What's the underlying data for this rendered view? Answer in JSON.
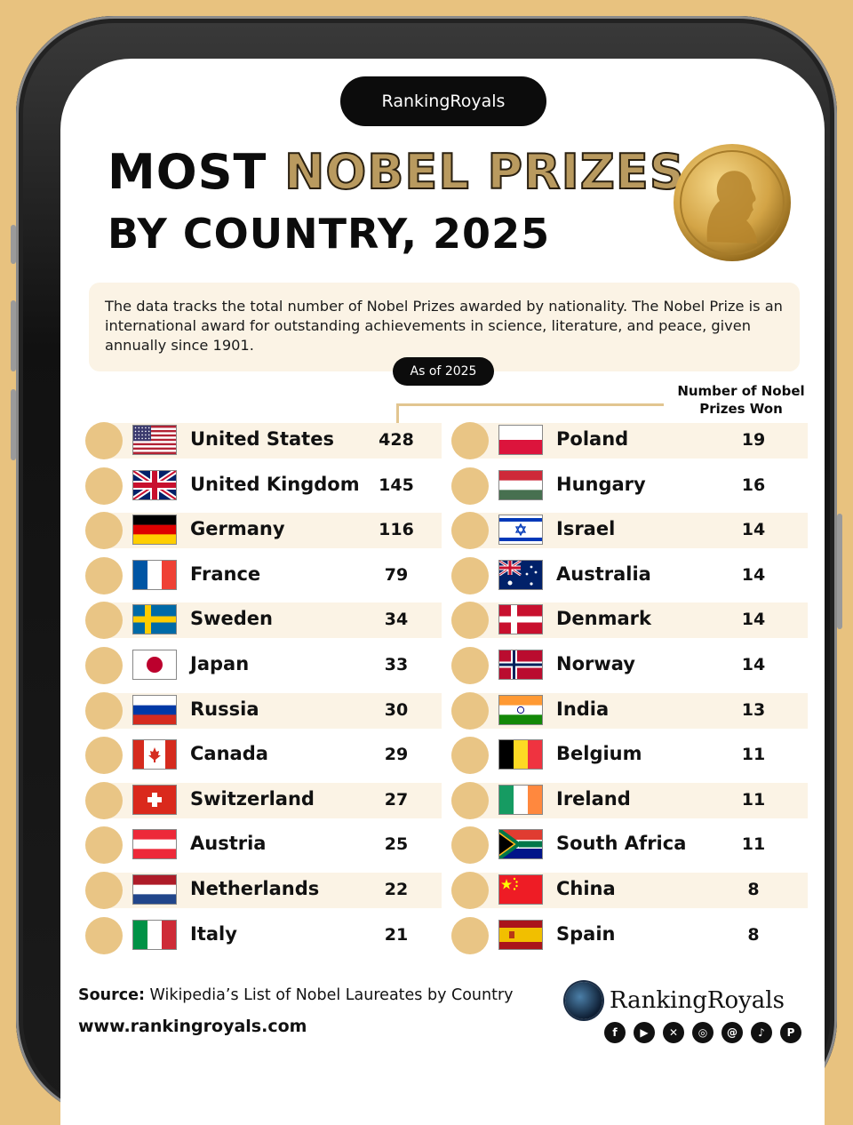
{
  "header": {
    "brand_pill": "RankingRoyals"
  },
  "title": {
    "line1_a": "MOST ",
    "line1_b": "NOBEL PRIZES",
    "line2": "BY COUNTRY, 2025"
  },
  "description": "The data tracks the total number of Nobel Prizes awarded by nationality. The Nobel Prize is an international award for outstanding achievements in science, literature, and peace, given annually since 1901.",
  "as_of": "As of 2025",
  "column_header": "Number of Nobel Prizes Won",
  "chart_data": {
    "type": "table",
    "title": "MOST NOBEL PRIZES BY COUNTRY, 2025",
    "column_header": "Number of Nobel Prizes Won",
    "rows": [
      {
        "country": "United States",
        "value": 428
      },
      {
        "country": "United Kingdom",
        "value": 145
      },
      {
        "country": "Germany",
        "value": 116
      },
      {
        "country": "France",
        "value": 79
      },
      {
        "country": "Sweden",
        "value": 34
      },
      {
        "country": "Japan",
        "value": 33
      },
      {
        "country": "Russia",
        "value": 30
      },
      {
        "country": "Canada",
        "value": 29
      },
      {
        "country": "Switzerland",
        "value": 27
      },
      {
        "country": "Austria",
        "value": 25
      },
      {
        "country": "Netherlands",
        "value": 22
      },
      {
        "country": "Italy",
        "value": 21
      },
      {
        "country": "Poland",
        "value": 19
      },
      {
        "country": "Hungary",
        "value": 16
      },
      {
        "country": "Israel",
        "value": 14
      },
      {
        "country": "Australia",
        "value": 14
      },
      {
        "country": "Denmark",
        "value": 14
      },
      {
        "country": "Norway",
        "value": 14
      },
      {
        "country": "India",
        "value": 13
      },
      {
        "country": "Belgium",
        "value": 11
      },
      {
        "country": "Ireland",
        "value": 11
      },
      {
        "country": "South Africa",
        "value": 11
      },
      {
        "country": "China",
        "value": 8
      },
      {
        "country": "Spain",
        "value": 8
      }
    ]
  },
  "colors": {
    "accent_gold": "#b99a5f",
    "circle": "#e9c585",
    "band": "#fbf3e5",
    "background": "#e8c27f"
  },
  "footer": {
    "source_label": "Source:",
    "source_text": " Wikipedia’s List of Nobel Laureates by Country",
    "url": "www.rankingroyals.com",
    "brand": "RankingRoyals",
    "social_icons": [
      "facebook-icon",
      "youtube-icon",
      "x-icon",
      "instagram-icon",
      "threads-icon",
      "tiktok-icon",
      "pinterest-icon"
    ]
  }
}
